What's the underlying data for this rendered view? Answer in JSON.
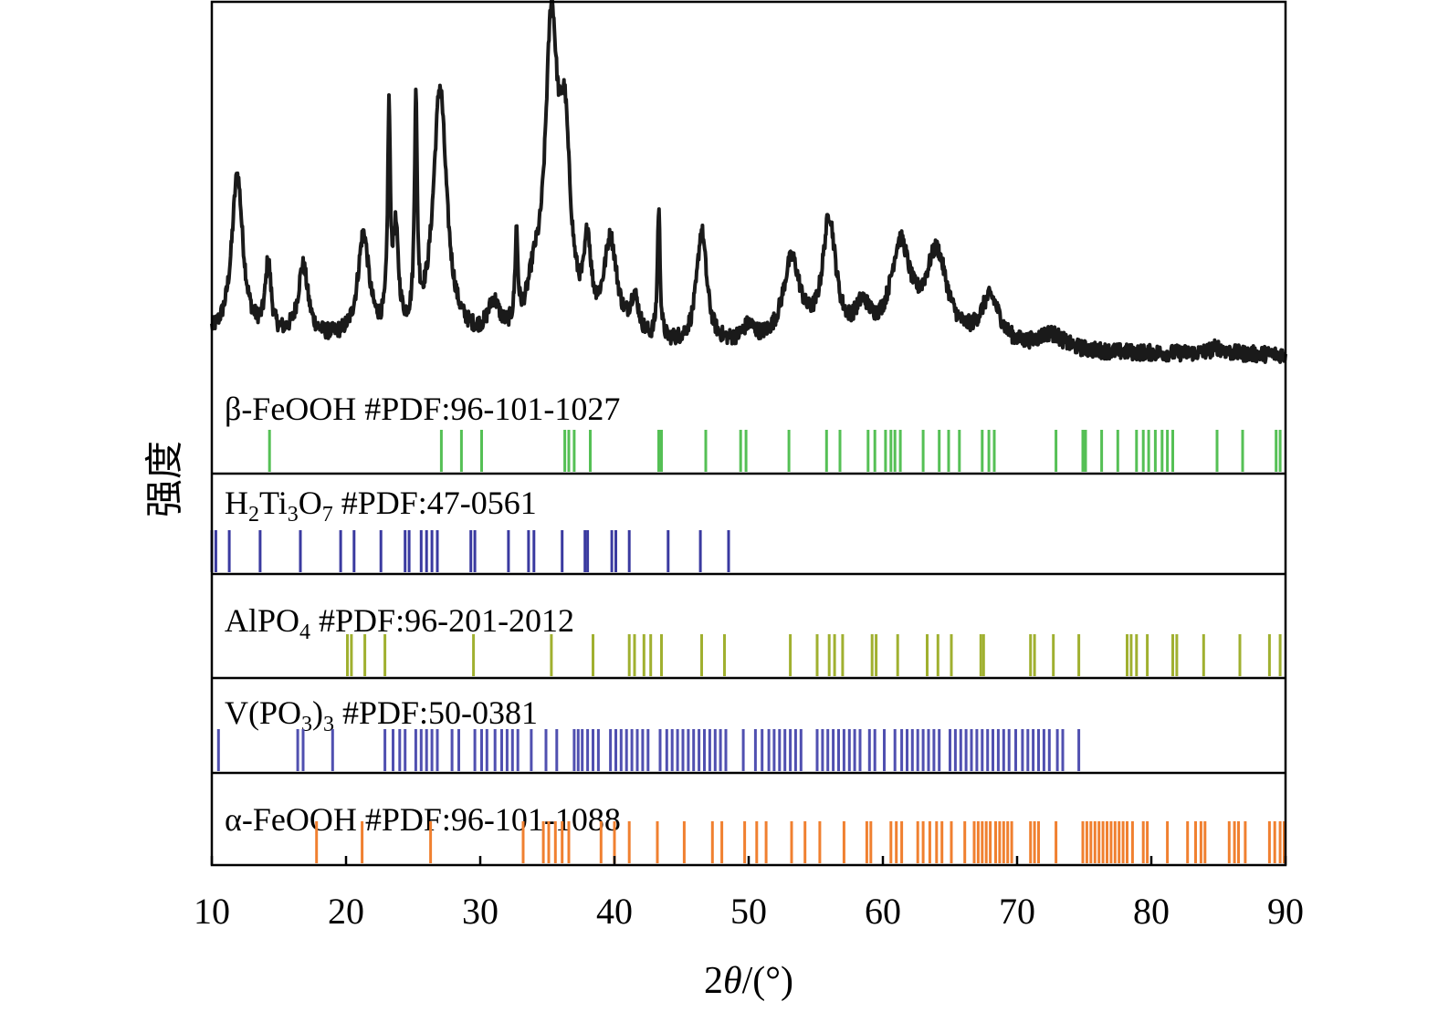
{
  "chart_data": {
    "type": "line",
    "xlabel": {
      "prefix": "2",
      "theta": "θ",
      "suffix": "/(°)"
    },
    "ylabel": "强度",
    "xlim": [
      10,
      90
    ],
    "xticks": [
      "10",
      "20",
      "30",
      "40",
      "50",
      "60",
      "70",
      "80",
      "90"
    ],
    "pattern": {
      "color": "#1a1a1a",
      "baseline": 0.06,
      "peaks": [
        [
          11.9,
          0.5,
          0.5
        ],
        [
          14.2,
          0.22,
          0.25
        ],
        [
          16.8,
          0.22,
          0.45
        ],
        [
          21.3,
          0.32,
          0.5
        ],
        [
          23.2,
          0.65,
          0.12
        ],
        [
          23.7,
          0.3,
          0.25
        ],
        [
          25.2,
          0.7,
          0.12
        ],
        [
          27.0,
          0.78,
          0.6
        ],
        [
          31.0,
          0.1,
          0.5
        ],
        [
          32.7,
          0.28,
          0.12
        ],
        [
          34.0,
          0.12,
          0.6
        ],
        [
          35.3,
          0.92,
          0.55
        ],
        [
          36.3,
          0.55,
          0.5
        ],
        [
          38.0,
          0.25,
          0.3
        ],
        [
          39.7,
          0.3,
          0.6
        ],
        [
          41.5,
          0.12,
          0.4
        ],
        [
          43.3,
          0.4,
          0.12
        ],
        [
          46.5,
          0.35,
          0.45
        ],
        [
          50.0,
          0.05,
          0.6
        ],
        [
          53.2,
          0.26,
          0.8
        ],
        [
          56.0,
          0.38,
          0.6
        ],
        [
          58.5,
          0.1,
          0.7
        ],
        [
          61.3,
          0.3,
          0.9
        ],
        [
          64.0,
          0.28,
          1.0
        ],
        [
          68.0,
          0.15,
          0.9
        ],
        [
          72.5,
          0.05,
          1.2
        ],
        [
          84.9,
          0.02,
          0.6
        ]
      ]
    },
    "references": [
      {
        "name": "β-FeOOH #PDF:96-101-1027",
        "color": "#55c055",
        "lines": [
          14.3,
          27.1,
          28.6,
          30.1,
          36.3,
          36.6,
          37.0,
          38.2,
          43.3,
          43.5,
          46.8,
          49.4,
          49.8,
          53.0,
          55.8,
          56.8,
          58.9,
          59.4,
          60.2,
          60.6,
          60.9,
          61.3,
          63.0,
          64.2,
          64.9,
          65.7,
          67.4,
          67.9,
          68.3,
          72.9,
          74.9,
          75.1,
          76.3,
          77.5,
          78.9,
          79.4,
          79.8,
          80.3,
          80.8,
          81.2,
          81.6,
          84.9,
          86.8,
          89.3,
          89.6
        ]
      },
      {
        "name": "H2Ti3O7 #PDF:47-0561",
        "label_parts": [
          {
            "text": "H",
            "sub": "2"
          },
          {
            "text": "Ti",
            "sub": "3"
          },
          {
            "text": "O",
            "sub": "7"
          },
          {
            "text": " #PDF:47-0561",
            "sub": ""
          }
        ],
        "color": "#3a3aa0",
        "lines": [
          10.0,
          10.3,
          11.3,
          13.6,
          16.6,
          19.6,
          20.6,
          22.6,
          24.4,
          24.7,
          25.6,
          26.0,
          26.4,
          26.8,
          29.3,
          29.6,
          32.1,
          33.6,
          34.0,
          36.1,
          37.8,
          38.0,
          39.8,
          40.1,
          41.1,
          44.0,
          46.4,
          48.5
        ]
      },
      {
        "name": "AlPO4 #PDF:96-201-2012",
        "label_parts": [
          {
            "text": "AlPO",
            "sub": "4"
          },
          {
            "text": " #PDF:96-201-2012",
            "sub": ""
          }
        ],
        "color": "#a0b030",
        "lines": [
          20.1,
          20.4,
          21.4,
          22.9,
          29.5,
          35.3,
          38.4,
          41.1,
          41.5,
          42.2,
          42.7,
          43.5,
          46.5,
          48.2,
          53.1,
          55.1,
          56.0,
          56.4,
          57.0,
          59.2,
          59.5,
          61.1,
          63.3,
          64.1,
          65.1,
          67.3,
          67.5,
          71.0,
          71.3,
          72.7,
          74.6,
          78.2,
          78.5,
          78.9,
          79.7,
          81.6,
          81.9,
          83.9,
          86.6,
          88.8,
          89.6
        ]
      },
      {
        "name": "V(PO3)3 #PDF:50-0381",
        "label_parts": [
          {
            "text": "V(PO",
            "sub": "3"
          },
          {
            "text": ")",
            "sub": "3"
          },
          {
            "text": " #PDF:50-0381",
            "sub": ""
          }
        ],
        "color": "#5050b0",
        "lines": [
          10.5,
          16.4,
          16.8,
          19.0,
          22.9,
          23.5,
          24.0,
          24.4,
          25.2,
          25.6,
          26.0,
          26.4,
          26.8,
          27.9,
          28.4,
          29.6,
          30.1,
          30.5,
          31.1,
          31.6,
          32.0,
          32.4,
          32.8,
          33.8,
          34.9,
          35.7,
          37.0,
          37.3,
          37.6,
          38.0,
          38.4,
          38.8,
          39.7,
          40.1,
          40.5,
          40.9,
          41.3,
          41.7,
          42.1,
          42.5,
          43.4,
          43.9,
          44.3,
          44.7,
          45.1,
          45.5,
          45.9,
          46.3,
          46.7,
          47.1,
          47.5,
          47.9,
          48.3,
          49.6,
          50.5,
          51.0,
          51.5,
          51.9,
          52.3,
          52.7,
          53.1,
          53.5,
          53.9,
          55.1,
          55.5,
          55.9,
          56.3,
          56.7,
          57.1,
          57.5,
          57.9,
          58.3,
          59.0,
          59.4,
          60.1,
          60.9,
          61.4,
          61.8,
          62.2,
          62.6,
          63.0,
          63.4,
          63.8,
          64.2,
          65.0,
          65.4,
          65.8,
          66.2,
          66.6,
          67.0,
          67.4,
          67.8,
          68.2,
          68.6,
          69.0,
          69.4,
          69.9,
          70.4,
          70.8,
          71.2,
          71.6,
          72.0,
          72.4,
          73.0,
          73.4,
          74.6
        ]
      },
      {
        "name": "α-FeOOH #PDF:96-101-1088",
        "color": "#f08030",
        "lines": [
          17.8,
          21.2,
          26.3,
          33.2,
          34.7,
          35.1,
          35.6,
          36.1,
          36.6,
          39.0,
          40.0,
          41.1,
          43.2,
          45.2,
          47.3,
          48.0,
          49.7,
          50.6,
          51.3,
          53.2,
          54.2,
          55.3,
          57.1,
          58.8,
          59.1,
          60.6,
          61.0,
          61.4,
          62.6,
          63.0,
          63.5,
          64.0,
          64.4,
          65.1,
          66.1,
          66.8,
          67.1,
          67.4,
          67.7,
          68.0,
          68.4,
          68.7,
          69.0,
          69.3,
          69.6,
          71.0,
          71.3,
          71.6,
          72.9,
          74.9,
          75.2,
          75.5,
          75.8,
          76.1,
          76.4,
          76.7,
          77.0,
          77.3,
          77.6,
          77.9,
          78.2,
          78.6,
          79.4,
          79.7,
          81.2,
          82.7,
          83.3,
          83.7,
          84.0,
          85.8,
          86.2,
          86.5,
          87.0,
          88.8,
          89.2,
          89.6,
          89.9
        ]
      }
    ],
    "grid": false
  }
}
